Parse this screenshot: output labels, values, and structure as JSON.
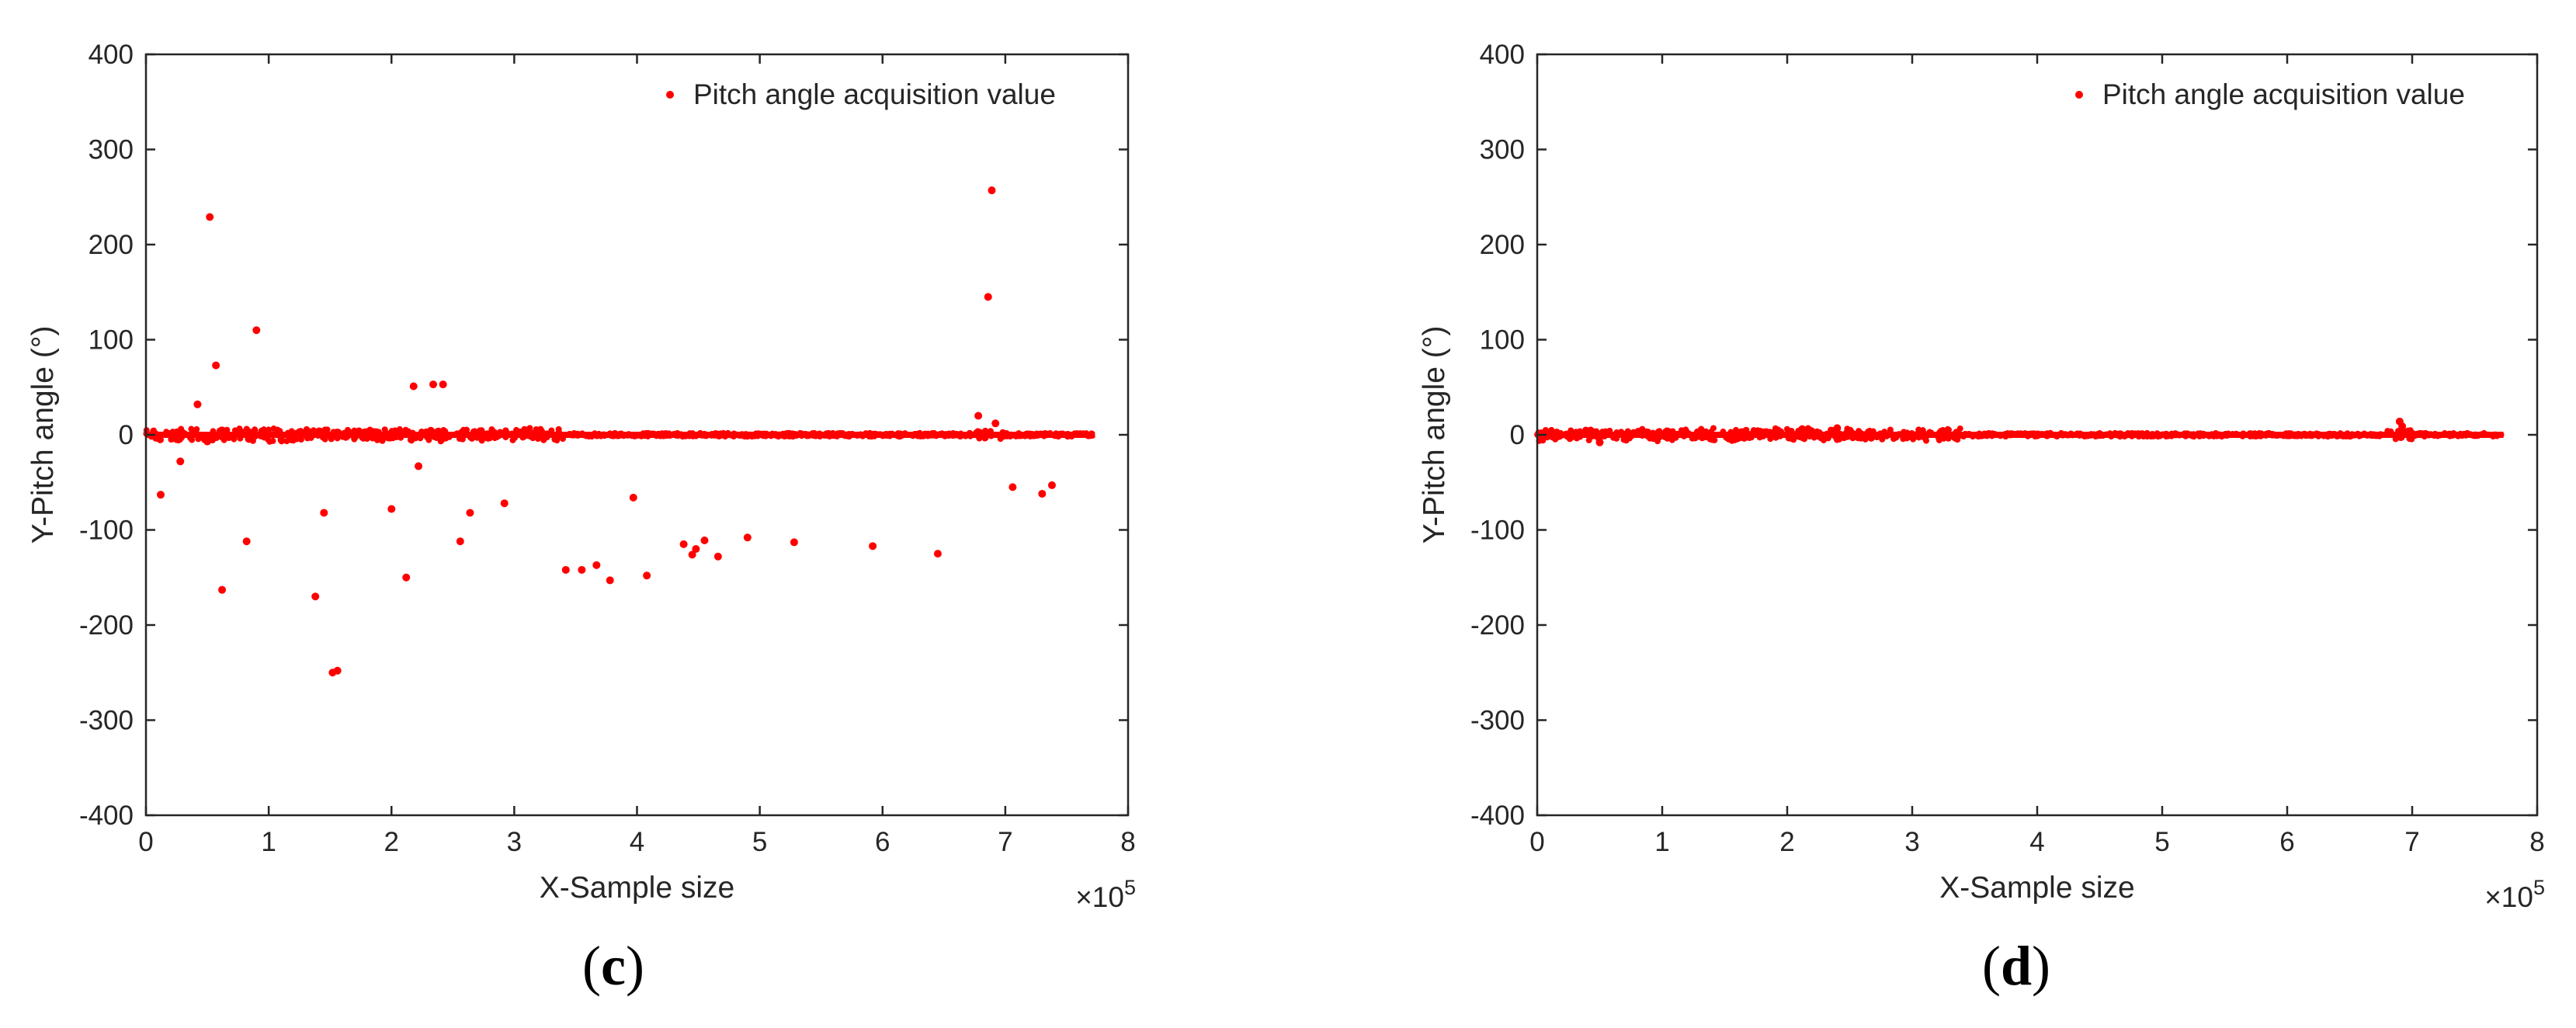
{
  "colors": {
    "marker": "#ff0000",
    "axis": "#262626",
    "background": "#ffffff"
  },
  "chart_data": [
    {
      "type": "scatter",
      "panel_label": "c",
      "xlabel": "X-Sample size",
      "ylabel": "Y-Pitch angle (°)",
      "x_multiplier": "×10",
      "x_multiplier_exp": "5",
      "xlim": [
        0,
        800000
      ],
      "ylim": [
        -400,
        400
      ],
      "xticks": [
        0,
        1,
        2,
        3,
        4,
        5,
        6,
        7,
        8
      ],
      "yticks": [
        -400,
        -300,
        -200,
        -100,
        0,
        100,
        200,
        300,
        400
      ],
      "grid": false,
      "legend_position": "top-right",
      "series": [
        {
          "name": "Pitch angle acquisition value",
          "band": {
            "x_range": [
              0,
              773000
            ],
            "y_center": 0,
            "y_spread": 3
          },
          "points": [
            [
              12000,
              -63
            ],
            [
              28000,
              -28
            ],
            [
              42000,
              32
            ],
            [
              50000,
              -7
            ],
            [
              52000,
              229
            ],
            [
              57000,
              73
            ],
            [
              62000,
              -163
            ],
            [
              82000,
              -112
            ],
            [
              90000,
              110
            ],
            [
              138000,
              -170
            ],
            [
              145000,
              -82
            ],
            [
              152000,
              -250
            ],
            [
              156000,
              -248
            ],
            [
              200000,
              -78
            ],
            [
              212000,
              -150
            ],
            [
              218000,
              51
            ],
            [
              222000,
              -33
            ],
            [
              234000,
              53
            ],
            [
              242000,
              53
            ],
            [
              256000,
              -112
            ],
            [
              264000,
              -82
            ],
            [
              292000,
              -72
            ],
            [
              342000,
              -142
            ],
            [
              355000,
              -142
            ],
            [
              367000,
              -137
            ],
            [
              378000,
              -153
            ],
            [
              397000,
              -66
            ],
            [
              408000,
              -148
            ],
            [
              438000,
              -115
            ],
            [
              445000,
              -126
            ],
            [
              448000,
              -120
            ],
            [
              455000,
              -111
            ],
            [
              466000,
              -128
            ],
            [
              490000,
              -108
            ],
            [
              528000,
              -113
            ],
            [
              592000,
              -117
            ],
            [
              645000,
              -125
            ],
            [
              678000,
              20
            ],
            [
              686000,
              145
            ],
            [
              689000,
              257
            ],
            [
              692000,
              12
            ],
            [
              706000,
              -55
            ],
            [
              730000,
              -62
            ],
            [
              738000,
              -53
            ]
          ]
        }
      ]
    },
    {
      "type": "scatter",
      "panel_label": "d",
      "xlabel": "X-Sample size",
      "ylabel": "Y-Pitch angle (°)",
      "x_multiplier": "×10",
      "x_multiplier_exp": "5",
      "xlim": [
        0,
        800000
      ],
      "ylim": [
        -400,
        400
      ],
      "xticks": [
        0,
        1,
        2,
        3,
        4,
        5,
        6,
        7,
        8
      ],
      "yticks": [
        -400,
        -300,
        -200,
        -100,
        0,
        100,
        200,
        300,
        400
      ],
      "grid": false,
      "legend_position": "top-right",
      "series": [
        {
          "name": "Pitch angle acquisition value",
          "band": {
            "x_range": [
              0,
              773000
            ],
            "y_center": 0,
            "y_spread": 3
          },
          "points": [
            [
              50000,
              -8
            ],
            [
              212000,
              6
            ],
            [
              240000,
              7
            ],
            [
              690000,
              14
            ],
            [
              692000,
              9
            ]
          ]
        }
      ]
    }
  ]
}
